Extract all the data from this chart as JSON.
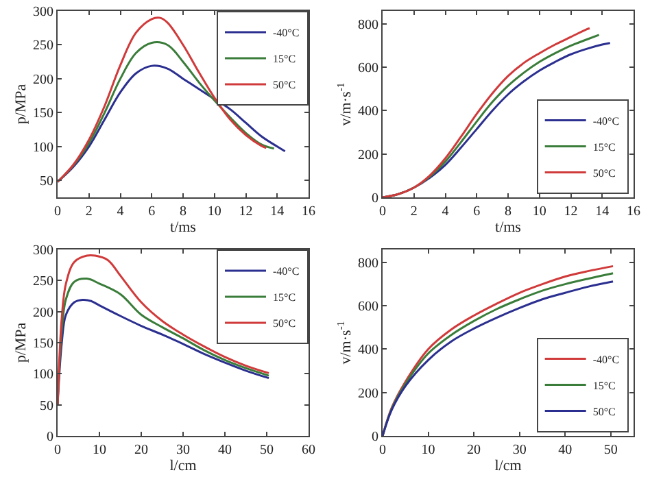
{
  "chart_data": [
    {
      "type": "line",
      "xlabel": "t/ms",
      "ylabel": "p/MPa",
      "xlim": [
        0,
        16
      ],
      "xticks": [
        0,
        2,
        4,
        6,
        8,
        10,
        12,
        14,
        16
      ],
      "ylim": [
        25,
        300
      ],
      "yticks": [
        50,
        100,
        150,
        200,
        250,
        300
      ],
      "grid": false,
      "legend": "top right",
      "series": [
        {
          "name": "-40°C",
          "color": "#2b2f8f",
          "x": [
            0,
            1,
            2,
            3,
            4,
            5,
            6,
            7,
            8,
            9,
            10,
            11,
            12,
            13,
            14,
            14.5
          ],
          "values": [
            48,
            70,
            100,
            140,
            180,
            208,
            219,
            215,
            200,
            185,
            170,
            155,
            135,
            115,
            100,
            93
          ]
        },
        {
          "name": "15°C",
          "color": "#3a7d3a",
          "x": [
            0,
            1,
            2,
            3,
            4,
            5,
            6,
            7,
            8,
            9,
            10,
            11,
            12,
            13,
            13.8
          ],
          "values": [
            48,
            72,
            105,
            150,
            200,
            238,
            253,
            250,
            225,
            195,
            168,
            143,
            120,
            103,
            97
          ]
        },
        {
          "name": "50°C",
          "color": "#d03a3a",
          "x": [
            0,
            1,
            2,
            3,
            4,
            5,
            6,
            6.5,
            7,
            8,
            9,
            10,
            11,
            12,
            13,
            13.3
          ],
          "values": [
            48,
            73,
            110,
            160,
            220,
            268,
            288,
            290,
            283,
            250,
            210,
            172,
            140,
            117,
            101,
            98
          ]
        }
      ]
    },
    {
      "type": "line",
      "xlabel": "t/ms",
      "ylabel": "v/m·s$^{-1}$",
      "xlim": [
        0,
        16
      ],
      "xticks": [
        0,
        2,
        4,
        6,
        8,
        10,
        12,
        14,
        16
      ],
      "ylim": [
        0,
        860
      ],
      "yticks": [
        0,
        200,
        400,
        600,
        800
      ],
      "grid": false,
      "legend": "bottom right",
      "series": [
        {
          "name": "-40°C",
          "color": "#2b2f8f",
          "x": [
            0,
            1,
            2,
            3,
            4,
            5,
            6,
            7,
            8,
            9,
            10,
            11,
            12,
            13,
            14,
            14.5
          ],
          "values": [
            0,
            15,
            45,
            90,
            150,
            230,
            315,
            400,
            475,
            535,
            585,
            625,
            660,
            685,
            705,
            712
          ]
        },
        {
          "name": "15°C",
          "color": "#3a7d3a",
          "x": [
            0,
            1,
            2,
            3,
            4,
            5,
            6,
            7,
            8,
            9,
            10,
            11,
            12,
            13,
            13.8
          ],
          "values": [
            0,
            15,
            45,
            95,
            165,
            255,
            350,
            440,
            515,
            575,
            625,
            665,
            700,
            728,
            750
          ]
        },
        {
          "name": "50°C",
          "color": "#d03a3a",
          "x": [
            0,
            1,
            2,
            3,
            4,
            5,
            6,
            7,
            8,
            9,
            10,
            11,
            12,
            13,
            13.2
          ],
          "values": [
            0,
            15,
            45,
            100,
            180,
            280,
            385,
            480,
            560,
            620,
            665,
            705,
            740,
            775,
            780
          ]
        }
      ]
    },
    {
      "type": "line",
      "xlabel": "l/cm",
      "ylabel": "p/MPa",
      "xlim": [
        0,
        60
      ],
      "xticks": [
        0,
        10,
        20,
        30,
        40,
        50,
        60
      ],
      "ylim": [
        0,
        300
      ],
      "yticks": [
        0,
        50,
        100,
        150,
        200,
        250,
        300
      ],
      "grid": false,
      "legend": "top right",
      "series": [
        {
          "name": "-40°C",
          "color": "#2b2f8f",
          "x": [
            0,
            1,
            2,
            4,
            6,
            8,
            10,
            15,
            20,
            25,
            30,
            35,
            40,
            45,
            50.5
          ],
          "values": [
            50,
            150,
            195,
            215,
            219,
            217,
            210,
            193,
            177,
            163,
            148,
            132,
            118,
            105,
            93
          ]
        },
        {
          "name": "15°C",
          "color": "#3a7d3a",
          "x": [
            0,
            1,
            2,
            4,
            7,
            10,
            15,
            20,
            25,
            30,
            35,
            40,
            45,
            50.5
          ],
          "values": [
            50,
            170,
            220,
            248,
            253,
            245,
            228,
            195,
            175,
            157,
            138,
            122,
            109,
            97
          ]
        },
        {
          "name": "50°C",
          "color": "#d03a3a",
          "x": [
            0,
            1,
            2,
            4,
            7,
            9,
            12,
            15,
            20,
            25,
            30,
            35,
            40,
            45,
            50.5
          ],
          "values": [
            50,
            190,
            245,
            280,
            290,
            290,
            283,
            258,
            215,
            185,
            163,
            144,
            127,
            113,
            101
          ]
        }
      ]
    },
    {
      "type": "line",
      "xlabel": "l/cm",
      "ylabel": "v/m·s$^{-1}$",
      "xlim": [
        0,
        55
      ],
      "xticks": [
        0,
        10,
        20,
        30,
        40,
        50
      ],
      "ylim": [
        0,
        860
      ],
      "yticks": [
        0,
        200,
        400,
        600,
        800
      ],
      "grid": false,
      "legend": "bottom right",
      "series": [
        {
          "name": "-40°C",
          "color": "#d03a3a",
          "x": [
            0,
            2,
            5,
            10,
            15,
            20,
            25,
            30,
            35,
            40,
            45,
            50.5
          ],
          "values": [
            0,
            130,
            250,
            400,
            490,
            555,
            610,
            660,
            700,
            735,
            760,
            783
          ]
        },
        {
          "name": "15°C",
          "color": "#3a7d3a",
          "x": [
            0,
            2,
            5,
            10,
            15,
            20,
            25,
            30,
            35,
            40,
            45,
            50.5
          ],
          "values": [
            0,
            125,
            240,
            380,
            465,
            530,
            585,
            630,
            670,
            700,
            725,
            750
          ]
        },
        {
          "name": "50°C",
          "color": "#2b2f8f",
          "x": [
            0,
            2,
            5,
            10,
            15,
            20,
            25,
            30,
            35,
            40,
            45,
            50.5
          ],
          "values": [
            0,
            120,
            230,
            350,
            435,
            495,
            545,
            590,
            630,
            660,
            688,
            712
          ]
        }
      ]
    }
  ]
}
